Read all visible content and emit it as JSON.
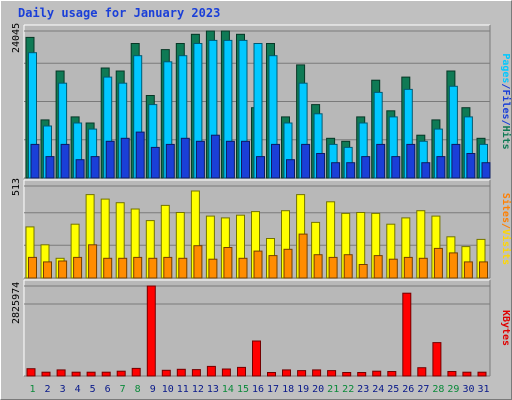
{
  "title": "Daily usage for January 2023",
  "chart_data": [
    {
      "type": "bar",
      "name": "hits-files-pages",
      "ylabel_parts": [
        {
          "text": "Pages",
          "color": "#00c8ff"
        },
        {
          "text": "/",
          "color": "#1a3fd8"
        },
        {
          "text": "Files",
          "color": "#1a3fd8"
        },
        {
          "text": "/",
          "color": "#1a3fd8"
        },
        {
          "text": "Hits",
          "color": "#0f7a55"
        }
      ],
      "ymax_label": "24045",
      "ylim": [
        0,
        24045
      ],
      "categories": [
        "1",
        "2",
        "3",
        "4",
        "5",
        "6",
        "7",
        "8",
        "9",
        "10",
        "11",
        "12",
        "13",
        "14",
        "15",
        "16",
        "17",
        "18",
        "19",
        "20",
        "21",
        "22",
        "23",
        "24",
        "25",
        "26",
        "27",
        "28",
        "29",
        "30",
        "31"
      ],
      "weekend_days": [
        "1",
        "7",
        "8",
        "14",
        "15",
        "21",
        "22",
        "28",
        "29"
      ],
      "series": [
        {
          "name": "Hits",
          "color": "#0f7a55",
          "values": [
            23000,
            9500,
            17500,
            10000,
            9000,
            18000,
            17500,
            22000,
            13500,
            21000,
            22000,
            23500,
            24045,
            24045,
            23500,
            11500,
            22000,
            10000,
            18500,
            12000,
            6500,
            6000,
            10000,
            16000,
            11000,
            16500,
            7000,
            9500,
            17500,
            11500,
            6500
          ]
        },
        {
          "name": "Files",
          "color": "#00c8ff",
          "values": [
            20500,
            8500,
            15500,
            9000,
            8000,
            16500,
            15500,
            20000,
            12000,
            19000,
            20000,
            22000,
            22500,
            22500,
            22500,
            22000,
            20000,
            9000,
            15500,
            10500,
            5500,
            5000,
            9000,
            14000,
            10000,
            14500,
            6000,
            8000,
            15000,
            10000,
            5500
          ]
        },
        {
          "name": "Pages",
          "color": "#1a3fd8",
          "values": [
            5500,
            3500,
            5500,
            3000,
            3500,
            6000,
            6500,
            7500,
            5000,
            5500,
            6500,
            6000,
            7000,
            6000,
            6000,
            3500,
            5500,
            3000,
            5500,
            4000,
            2500,
            2500,
            3500,
            5500,
            3500,
            5500,
            2500,
            3500,
            5500,
            4000,
            2500
          ]
        }
      ]
    },
    {
      "type": "bar",
      "name": "visits-sites",
      "ylabel_parts": [
        {
          "text": "Sites",
          "color": "#ff7f00"
        },
        {
          "text": "/",
          "color": "#ff7f00"
        },
        {
          "text": "Visits",
          "color": "#ffd700"
        }
      ],
      "ymax_label": "513",
      "ylim": [
        0,
        513
      ],
      "categories": [
        "1",
        "2",
        "3",
        "4",
        "5",
        "6",
        "7",
        "8",
        "9",
        "10",
        "11",
        "12",
        "13",
        "14",
        "15",
        "16",
        "17",
        "18",
        "19",
        "20",
        "21",
        "22",
        "23",
        "24",
        "25",
        "26",
        "27",
        "28",
        "29",
        "30",
        "31"
      ],
      "series": [
        {
          "name": "Visits",
          "color": "#ffff00",
          "values": [
            285,
            185,
            110,
            300,
            465,
            440,
            420,
            385,
            320,
            405,
            365,
            485,
            345,
            335,
            350,
            370,
            220,
            375,
            465,
            310,
            425,
            360,
            365,
            360,
            300,
            335,
            375,
            345,
            230,
            175,
            215
          ]
        },
        {
          "name": "Sites",
          "color": "#ff8c00",
          "values": [
            115,
            90,
            95,
            115,
            185,
            110,
            110,
            115,
            110,
            115,
            110,
            180,
            105,
            170,
            110,
            150,
            125,
            160,
            245,
            130,
            115,
            130,
            75,
            125,
            105,
            115,
            110,
            165,
            140,
            90,
            90
          ]
        }
      ]
    },
    {
      "type": "bar",
      "name": "kbytes",
      "ylabel_parts": [
        {
          "text": "KBytes",
          "color": "#e00000"
        }
      ],
      "ymax_label": "2825974",
      "ylim": [
        0,
        2825974
      ],
      "categories": [
        "1",
        "2",
        "3",
        "4",
        "5",
        "6",
        "7",
        "8",
        "9",
        "10",
        "11",
        "12",
        "13",
        "14",
        "15",
        "16",
        "17",
        "18",
        "19",
        "20",
        "21",
        "22",
        "23",
        "24",
        "25",
        "26",
        "27",
        "28",
        "29",
        "30",
        "31"
      ],
      "series": [
        {
          "name": "KBytes",
          "color": "#ff0000",
          "values": [
            230000,
            120000,
            190000,
            120000,
            120000,
            120000,
            150000,
            240000,
            2825974,
            180000,
            210000,
            200000,
            300000,
            220000,
            270000,
            1100000,
            110000,
            190000,
            170000,
            190000,
            170000,
            110000,
            110000,
            150000,
            140000,
            2600000,
            260000,
            1050000,
            140000,
            120000,
            120000
          ]
        }
      ]
    }
  ]
}
